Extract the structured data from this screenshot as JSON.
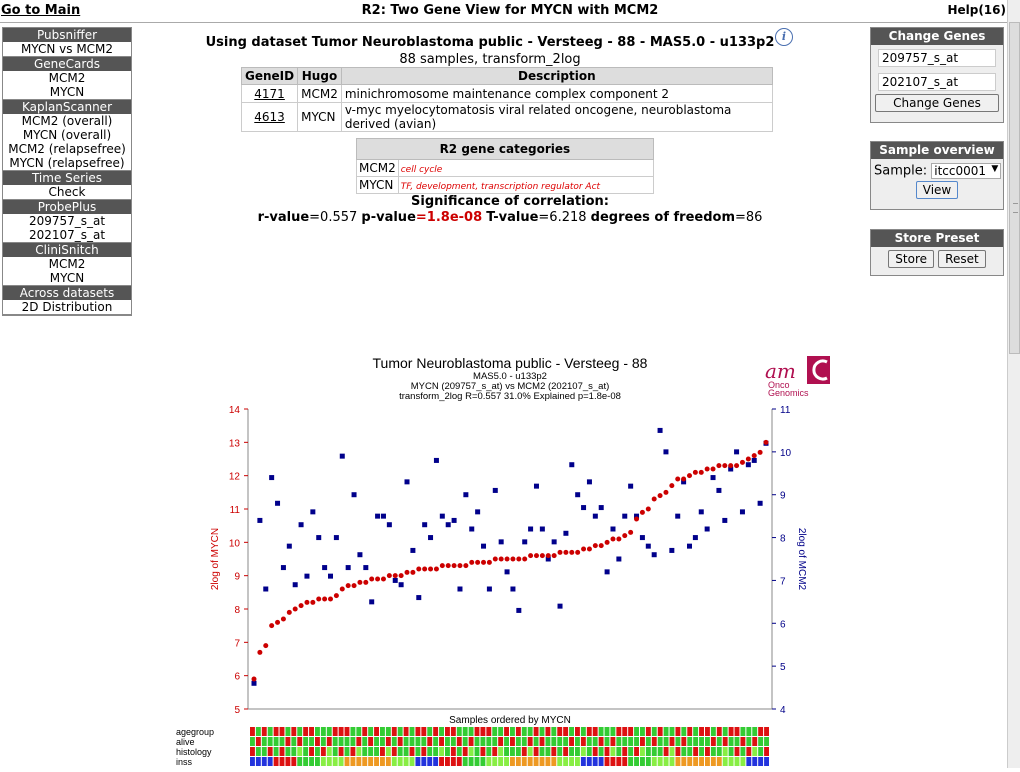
{
  "topbar": {
    "goto_main": "Go to Main",
    "title": "R2: Two Gene View for MYCN with MCM2",
    "help": "Help(16)"
  },
  "leftmenu": [
    {
      "head": "Pubsniffer",
      "items": [
        "MYCN vs MCM2"
      ]
    },
    {
      "head": "GeneCards",
      "items": [
        "MCM2",
        "MYCN"
      ]
    },
    {
      "head": "KaplanScanner",
      "items": [
        "MCM2 (overall)",
        "MYCN (overall)",
        "MCM2 (relapsefree)",
        "MYCN (relapsefree)"
      ]
    },
    {
      "head": "Time Series",
      "items": [
        "Check"
      ]
    },
    {
      "head": "ProbePlus",
      "items": [
        "209757_s_at",
        "202107_s_at"
      ]
    },
    {
      "head": "CliniSnitch",
      "items": [
        "MCM2",
        "MYCN"
      ]
    },
    {
      "head": "Across datasets",
      "items": [
        "2D Distribution"
      ]
    }
  ],
  "header": {
    "dataset_line": "Using dataset Tumor Neuroblastoma public - Versteeg - 88 - MAS5.0 - u133p2",
    "sub_line": "88 samples, transform_2log"
  },
  "gene_table": {
    "headers": [
      "GeneID",
      "Hugo",
      "Description"
    ],
    "rows": [
      {
        "id": "4171",
        "hugo": "MCM2",
        "desc": "minichromosome maintenance complex component 2"
      },
      {
        "id": "4613",
        "hugo": "MYCN",
        "desc": "v-myc myelocytomatosis viral related oncogene, neuroblastoma derived (avian)"
      }
    ]
  },
  "categories": {
    "header": "R2 gene categories",
    "rows": [
      {
        "gene": "MCM2",
        "cats": "cell cycle"
      },
      {
        "gene": "MYCN",
        "cats": "TF, development, transcription regulator Act"
      }
    ]
  },
  "significance": {
    "title": "Significance of correlation:",
    "r_label": "r-value",
    "r": "=0.557",
    "p_label": "p-value",
    "p": "=1.8e-08",
    "t_label": "T-value",
    "t": "=6.218",
    "df_label": "degrees of freedom",
    "df": "=86"
  },
  "change_genes": {
    "head": "Change Genes",
    "gene1": "209757_s_at",
    "gene2": "202107_s_at",
    "button": "Change Genes"
  },
  "sample_overview": {
    "head": "Sample overview",
    "label": "Sample:",
    "selected": "itcc0001",
    "button": "View"
  },
  "store_preset": {
    "head": "Store Preset",
    "store": "Store",
    "reset": "Reset"
  },
  "logo": {
    "am": "am",
    "line1": "Onco",
    "line2": "Genomics"
  },
  "chart_data": {
    "type": "scatter",
    "title": "Tumor Neuroblastoma public - Versteeg - 88",
    "subtitle_lines": [
      "MAS5.0 - u133p2",
      "MYCN (209757_s_at) vs MCM2 (202107_s_at)",
      "transform_2log R=0.557 31.0% Explained p=1.8e-08"
    ],
    "xlabel": "Samples ordered by MYCN",
    "ylabel_left": "2log of MYCN",
    "ylabel_right": "2log of MCM2",
    "ylim_left": [
      5,
      14
    ],
    "ylim_right": [
      4,
      11
    ],
    "yticks_left": [
      "5",
      "6",
      "7",
      "8",
      "9",
      "10",
      "11",
      "12",
      "13",
      "14"
    ],
    "yticks_right": [
      "4",
      "5",
      "6",
      "7",
      "8",
      "9",
      "10",
      "11"
    ],
    "series": [
      {
        "name": "MYCN",
        "axis": "left",
        "color": "#cc0000",
        "values": [
          5.9,
          6.7,
          6.9,
          7.5,
          7.6,
          7.7,
          7.9,
          8.0,
          8.1,
          8.2,
          8.2,
          8.3,
          8.3,
          8.3,
          8.4,
          8.6,
          8.7,
          8.7,
          8.8,
          8.8,
          8.9,
          8.9,
          8.9,
          9.0,
          9.0,
          9.0,
          9.1,
          9.1,
          9.2,
          9.2,
          9.2,
          9.2,
          9.3,
          9.3,
          9.3,
          9.3,
          9.3,
          9.4,
          9.4,
          9.4,
          9.4,
          9.5,
          9.5,
          9.5,
          9.5,
          9.5,
          9.5,
          9.6,
          9.6,
          9.6,
          9.6,
          9.6,
          9.7,
          9.7,
          9.7,
          9.7,
          9.8,
          9.8,
          9.9,
          9.9,
          10.0,
          10.1,
          10.1,
          10.2,
          10.3,
          10.7,
          10.9,
          11.0,
          11.3,
          11.4,
          11.5,
          11.7,
          11.9,
          11.9,
          12.0,
          12.1,
          12.1,
          12.2,
          12.2,
          12.3,
          12.3,
          12.3,
          12.3,
          12.4,
          12.5,
          12.6,
          12.7,
          13.0
        ]
      },
      {
        "name": "MCM2",
        "axis": "right",
        "color": "#00008b",
        "values": [
          4.6,
          8.4,
          6.8,
          9.4,
          8.8,
          7.3,
          7.8,
          6.9,
          8.3,
          7.1,
          8.6,
          8.0,
          7.3,
          7.1,
          8.0,
          9.9,
          7.3,
          9.0,
          7.6,
          7.3,
          6.5,
          8.5,
          8.5,
          8.3,
          7.0,
          6.9,
          9.3,
          7.7,
          6.6,
          8.3,
          8.0,
          9.8,
          8.5,
          8.3,
          8.4,
          6.8,
          9.0,
          8.2,
          8.6,
          7.8,
          6.8,
          9.1,
          7.9,
          7.2,
          6.8,
          6.3,
          7.9,
          8.2,
          9.2,
          8.2,
          7.5,
          7.9,
          6.4,
          8.1,
          9.7,
          9.0,
          8.7,
          9.3,
          8.5,
          8.7,
          7.2,
          8.2,
          7.5,
          8.5,
          9.2,
          8.5,
          8.0,
          7.8,
          7.6,
          10.5,
          10.0,
          7.7,
          8.5,
          9.3,
          7.8,
          8.0,
          8.6,
          8.2,
          9.4,
          9.1,
          8.4,
          9.6,
          10.0,
          8.6,
          9.7,
          9.8,
          8.8,
          10.2
        ]
      }
    ],
    "annotation_tracks": [
      {
        "name": "agegroup"
      },
      {
        "name": "alive"
      },
      {
        "name": "histology"
      },
      {
        "name": "inss"
      }
    ],
    "colors": {
      "red": "#dd1111",
      "green": "#33cc33",
      "lightgreen": "#88ee44",
      "blue": "#2233dd",
      "orange": "#ee9922"
    }
  }
}
